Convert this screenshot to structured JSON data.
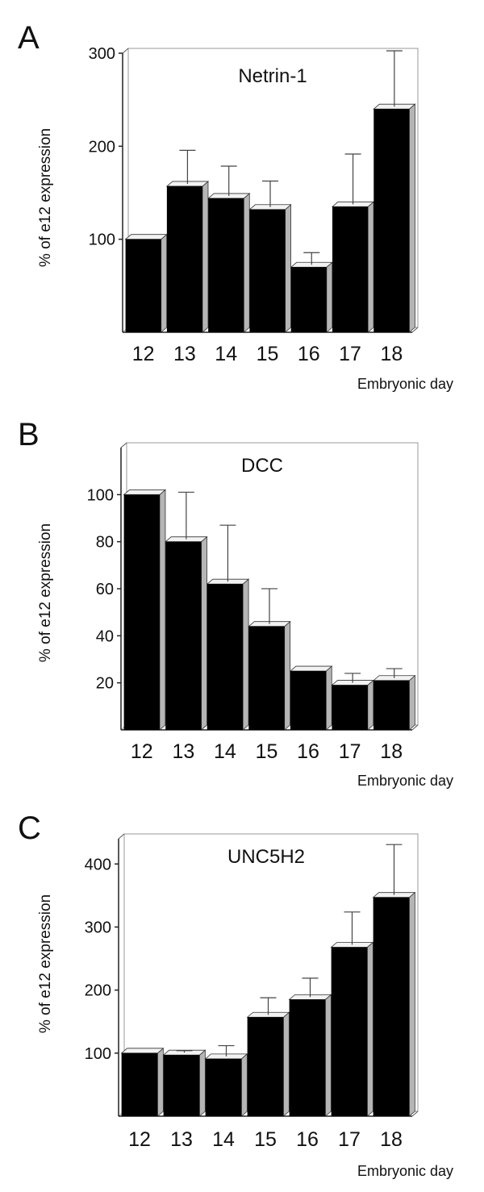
{
  "chart_data": [
    {
      "panel": "A",
      "type": "bar",
      "title": "Netrin-1",
      "xlabel": "Embryonic day",
      "ylabel": "% of e12 expression",
      "categories": [
        "12",
        "13",
        "14",
        "15",
        "16",
        "17",
        "18"
      ],
      "values": [
        100,
        157,
        144,
        132,
        70,
        135,
        240
      ],
      "errors": [
        0,
        36,
        32,
        28,
        13,
        54,
        60
      ],
      "ylim": [
        0,
        300
      ],
      "yticks": [
        "100",
        "200",
        "300"
      ],
      "tick_values": [
        100,
        200,
        300
      ],
      "bar_color": "#000000"
    },
    {
      "panel": "B",
      "type": "bar",
      "title": "DCC",
      "xlabel": "Embryonic day",
      "ylabel": "% of e12 expression",
      "categories": [
        "12",
        "13",
        "14",
        "15",
        "16",
        "17",
        "18"
      ],
      "values": [
        100,
        80,
        62,
        44,
        25,
        19,
        21
      ],
      "errors": [
        0,
        20,
        24,
        15,
        0,
        4,
        4
      ],
      "ylim": [
        0,
        120
      ],
      "yticks": [
        "20",
        "40",
        "60",
        "80",
        "100"
      ],
      "tick_values": [
        20,
        40,
        60,
        80,
        100
      ],
      "bar_color": "#000000"
    },
    {
      "panel": "C",
      "type": "bar",
      "title": "UNC5H2",
      "xlabel": "Embryonic day",
      "ylabel": "% of e12 expression",
      "categories": [
        "12",
        "13",
        "14",
        "15",
        "16",
        "17",
        "18"
      ],
      "values": [
        100,
        97,
        91,
        157,
        185,
        268,
        347
      ],
      "errors": [
        0,
        3,
        17,
        27,
        30,
        52,
        80
      ],
      "ylim": [
        0,
        440
      ],
      "yticks": [
        "100",
        "200",
        "300",
        "400"
      ],
      "tick_values": [
        100,
        200,
        300,
        400
      ],
      "bar_color": "#000000"
    }
  ]
}
